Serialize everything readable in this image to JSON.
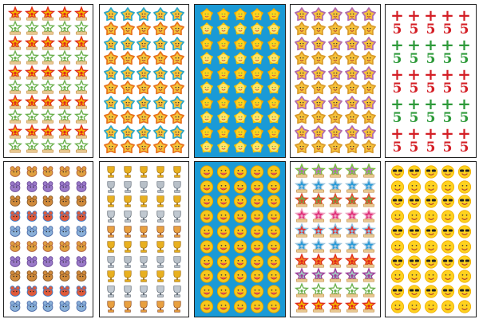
{
  "sheets": [
    {
      "kind": "star-badge",
      "background": "#ffffff",
      "rows": [
        "#f5b400|#e02a1a",
        "#ffffff|#6ab04c"
      ]
    },
    {
      "kind": "flower-star",
      "background": "#ffffff",
      "rows": [
        "#f5c43a|#2aa6c8",
        "#f5c43a|#e8701a"
      ]
    },
    {
      "kind": "sun",
      "background": "#1a9ad6",
      "rows": [
        "#ffd21f|#f2a900",
        "#ffe56a|#f5c000"
      ]
    },
    {
      "kind": "smiling-star",
      "background": "#ffffff",
      "rows": [
        "#f6c23a|#b06ab0",
        "#f6c23a|#d99a2a"
      ]
    },
    {
      "kind": "plus-five",
      "background": "#ffffff",
      "glyphs": [
        "+",
        "5"
      ],
      "colors": [
        "#d41f26",
        "#2e9a3a"
      ]
    },
    {
      "kind": "cartoon-animals",
      "background": "#ffffff",
      "rows": [
        "#e0a040|#b0603a",
        "#9a7ac8|#6b4a9a",
        "#d08a3a|#8a5a2a",
        "#e05a3a|#3a7ac8",
        "#8ab0d8|#4a6aa8"
      ]
    },
    {
      "kind": "trophy",
      "background": "#ffffff",
      "rows": [
        "#e8b020|#a07010",
        "#b8c0c8|#6a7480",
        "#e8b020|#a07010",
        "#c0c8d0|#5a6470",
        "#e8a040|#8a4a20"
      ]
    },
    {
      "kind": "smiley",
      "background": "#1a9ad6",
      "rows": [
        "#f8c81a|#e0a000"
      ]
    },
    {
      "kind": "praise-star",
      "background": "#ffffff",
      "rows": [
        "#c070c8|#7ac040",
        "#2a9ad8|#a0c8e0",
        "#6ab04c|#e04a2a",
        "#e0307a|#f0a0c0",
        "#e03030|#8ac0e0",
        "#2a9ad8|#a0c8e0",
        "#f08020|#e02a1a",
        "#a0c8c0|#a03a9a",
        "#ffffff|#6ab04c",
        "#f5b400|#e02a1a"
      ]
    },
    {
      "kind": "emoji",
      "background": "#ffffff",
      "rows": [
        "#ffd21f|#222222",
        "#ffd21f|#e05a3a"
      ]
    }
  ]
}
